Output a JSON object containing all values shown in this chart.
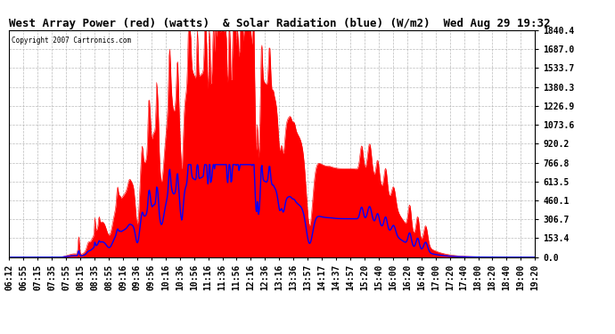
{
  "title": "West Array Power (red) (watts)  & Solar Radiation (blue) (W/m2)  Wed Aug 29 19:32",
  "copyright": "Copyright 2007 Cartronics.com",
  "yticks": [
    0.0,
    153.4,
    306.7,
    460.1,
    613.5,
    766.8,
    920.2,
    1073.6,
    1226.9,
    1380.3,
    1533.7,
    1687.0,
    1840.4
  ],
  "xtick_labels": [
    "06:12",
    "06:55",
    "07:15",
    "07:35",
    "07:55",
    "08:15",
    "08:35",
    "08:55",
    "09:16",
    "09:36",
    "09:56",
    "10:16",
    "10:36",
    "10:56",
    "11:16",
    "11:36",
    "11:56",
    "12:16",
    "12:36",
    "13:16",
    "13:36",
    "13:57",
    "14:17",
    "14:37",
    "14:57",
    "15:20",
    "15:40",
    "16:00",
    "16:20",
    "16:40",
    "17:00",
    "17:20",
    "17:40",
    "18:00",
    "18:20",
    "18:40",
    "19:00",
    "19:20"
  ],
  "bg_color": "#ffffff",
  "plot_bg_color": "#ffffff",
  "grid_color": "#aaaaaa",
  "red_color": "#ff0000",
  "blue_color": "#0000ff",
  "title_fontsize": 9,
  "tick_fontsize": 7,
  "ymax": 1840.4,
  "ymin": 0.0,
  "n_points": 800
}
